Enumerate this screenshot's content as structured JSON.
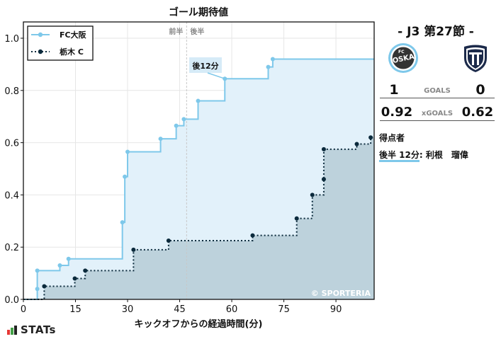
{
  "chart_data": {
    "type": "line",
    "subtype": "step-area",
    "title": "ゴール期待値",
    "xlabel": "キックオフからの経過時間(分)",
    "ylabel": "",
    "xlim": [
      0,
      101
    ],
    "ylim": [
      0,
      1.06
    ],
    "xticks": [
      0,
      15,
      30,
      45,
      60,
      75,
      90
    ],
    "yticks": [
      0.0,
      0.2,
      0.4,
      0.6,
      0.8,
      1.0
    ],
    "xtick_labels": [
      "0",
      "15",
      "30",
      "45",
      "60",
      "75",
      "90"
    ],
    "ytick_labels": [
      "0.0",
      "0.2",
      "0.4",
      "0.6",
      "0.8",
      "1.0"
    ],
    "grid": true,
    "legend_position": "upper left",
    "halftime_minute": 47,
    "halftime_labels": {
      "first": "前半",
      "second": "後半"
    },
    "series": [
      {
        "name": "FC大阪",
        "color": "#7ec8ea",
        "fill": "#e2f1fa",
        "line_style": "solid",
        "points": [
          {
            "x": 4,
            "y": 0.04
          },
          {
            "x": 4,
            "y": 0.11
          },
          {
            "x": 10.5,
            "y": 0.13
          },
          {
            "x": 13,
            "y": 0.155
          },
          {
            "x": 28.5,
            "y": 0.295
          },
          {
            "x": 29.2,
            "y": 0.47
          },
          {
            "x": 30,
            "y": 0.565
          },
          {
            "x": 39.5,
            "y": 0.615
          },
          {
            "x": 44,
            "y": 0.665
          },
          {
            "x": 46.2,
            "y": 0.69
          },
          {
            "x": 50.3,
            "y": 0.76
          },
          {
            "x": 58,
            "y": 0.845
          },
          {
            "x": 70.5,
            "y": 0.89
          },
          {
            "x": 71.8,
            "y": 0.92
          }
        ],
        "final": 0.92
      },
      {
        "name": "栃木 C",
        "color": "#0b2a3c",
        "fill": "#bdd2dc",
        "line_style": "dotted",
        "points": [
          {
            "x": 6,
            "y": 0.05
          },
          {
            "x": 14.8,
            "y": 0.08
          },
          {
            "x": 17.8,
            "y": 0.11
          },
          {
            "x": 31.7,
            "y": 0.19
          },
          {
            "x": 41.8,
            "y": 0.225
          },
          {
            "x": 66,
            "y": 0.245
          },
          {
            "x": 78.7,
            "y": 0.31
          },
          {
            "x": 83.2,
            "y": 0.4
          },
          {
            "x": 86.5,
            "y": 0.46
          },
          {
            "x": 86.5,
            "y": 0.575
          },
          {
            "x": 96,
            "y": 0.595
          },
          {
            "x": 100,
            "y": 0.62
          }
        ],
        "final": 0.62
      }
    ],
    "annotations": [
      {
        "text": "後12分",
        "x": 58,
        "y": 0.845,
        "team": "FC大阪"
      },
      {
        "text": "© SPORTERIA",
        "position": "bottom-right"
      }
    ]
  },
  "match": {
    "round": "-  J3 第27節  -",
    "home": {
      "name": "FC大阪",
      "logo": "fc-osaka-crest",
      "goals": "1",
      "xg": "0.92"
    },
    "away": {
      "name": "栃木 C",
      "logo": "tochigi-city-crest",
      "goals": "0",
      "xg": "0.62"
    },
    "goals_label": "GOALS",
    "xg_label": "xGOALS"
  },
  "scorers": {
    "heading": "得点者",
    "items": [
      {
        "time": "後半 12分",
        "sep": ":",
        "player": " 利根　瑠偉"
      }
    ]
  },
  "brand": {
    "name": "STATs",
    "bar_colors": [
      "#e53935",
      "#43a047",
      "#222222"
    ]
  },
  "colors": {
    "osaka": "#7ec8ea",
    "tochigi": "#0b2a3c"
  }
}
